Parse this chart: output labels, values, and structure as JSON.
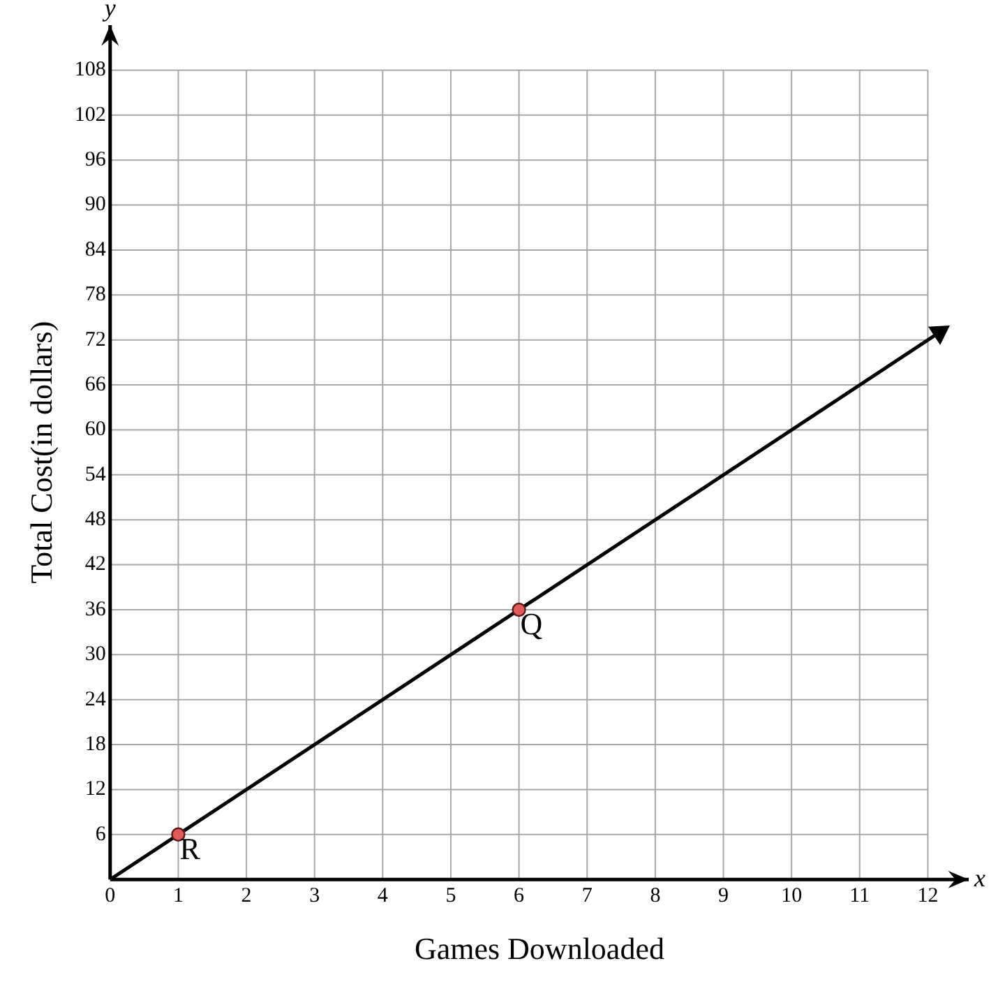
{
  "chart_data": {
    "type": "line",
    "xlabel": "Games Downloaded",
    "ylabel": "Total Cost(in dollars)",
    "xlim": [
      0,
      12.6
    ],
    "ylim": [
      0,
      114
    ],
    "xticks": [
      0,
      1,
      2,
      3,
      4,
      5,
      6,
      7,
      8,
      9,
      10,
      11,
      12
    ],
    "yticks": [
      {
        "value": 0,
        "label": null
      },
      6,
      12,
      18,
      24,
      30,
      36,
      42,
      48,
      54,
      60,
      66,
      72,
      78,
      84,
      90,
      96,
      102,
      108
    ],
    "grid": true,
    "legend": false,
    "series": [
      {
        "type": "line",
        "x": [
          0,
          12.17
        ],
        "values": [
          0,
          73
        ],
        "color": "#000000"
      },
      {
        "type": "scatter",
        "x": [
          1,
          6
        ],
        "values": [
          6,
          36
        ],
        "color": "#e05a5a",
        "marker": "circle"
      }
    ],
    "annotations": [
      {
        "text": "R",
        "x": 1,
        "y": 6
      },
      {
        "text": "Q",
        "x": 6,
        "y": 36
      },
      "x",
      "y"
    ]
  }
}
